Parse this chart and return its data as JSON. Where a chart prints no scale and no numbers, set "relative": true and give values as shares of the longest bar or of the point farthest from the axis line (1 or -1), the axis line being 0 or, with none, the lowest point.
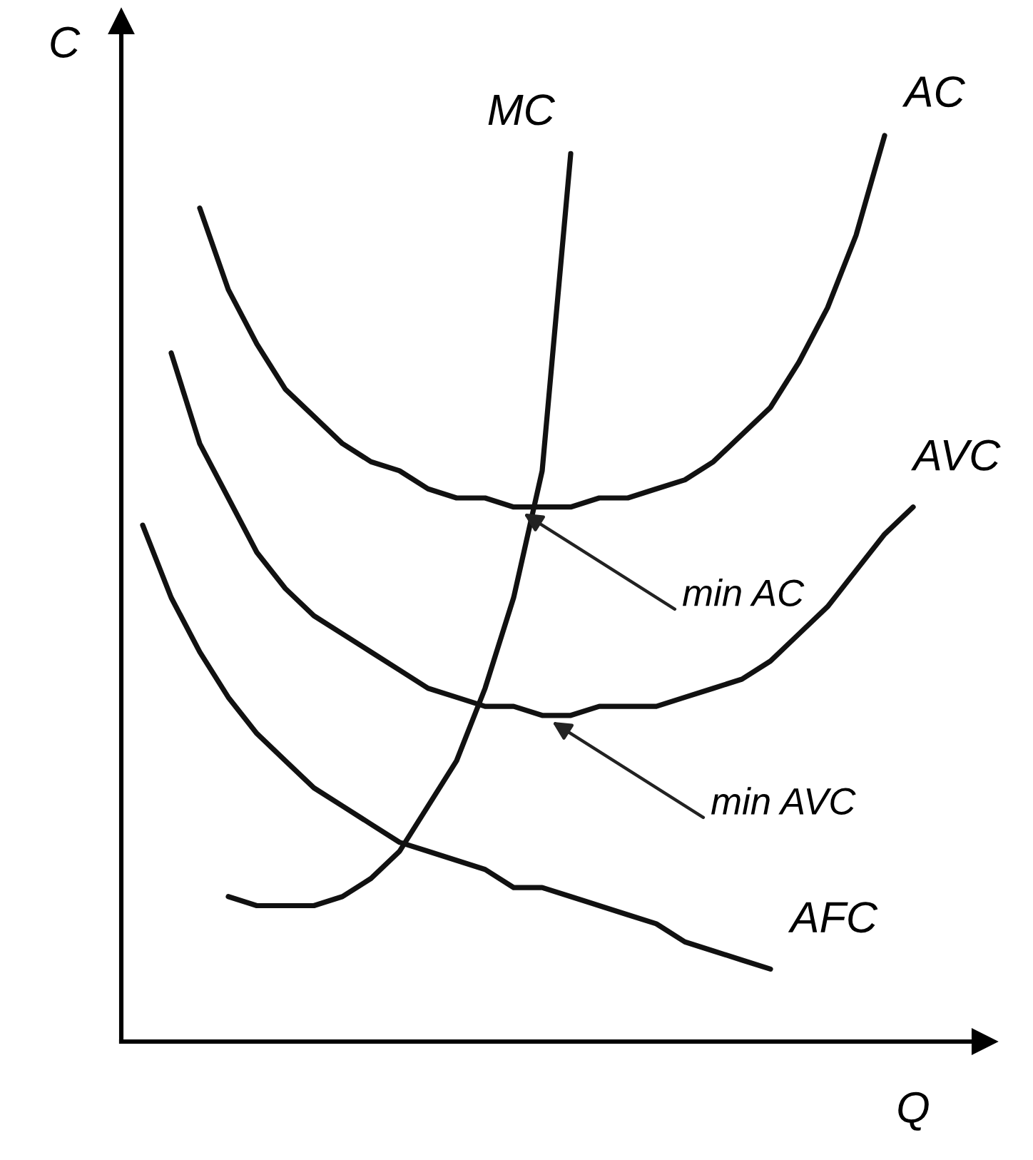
{
  "chart_data": {
    "type": "line",
    "relative": true,
    "xlabel": "Q",
    "ylabel": "C",
    "categories": [
      null,
      null,
      null,
      null,
      null,
      null,
      null,
      null,
      null,
      null,
      null,
      null,
      null,
      null,
      null,
      null,
      null,
      null,
      null,
      null,
      null,
      null,
      null,
      null,
      null,
      null,
      null,
      null
    ],
    "series": [
      {
        "name": "MC",
        "color": "#111111",
        "values": [
          null,
          null,
          null,
          0.16,
          0.15,
          0.15,
          0.15,
          0.16,
          0.18,
          0.21,
          0.26,
          0.31,
          0.39,
          0.49,
          0.63,
          0.98,
          null,
          null,
          null,
          null,
          null,
          null,
          null,
          null,
          null,
          null,
          null,
          null
        ]
      },
      {
        "name": "AC",
        "color": "#111111",
        "values": [
          null,
          null,
          0.92,
          0.83,
          0.77,
          0.72,
          0.69,
          0.66,
          0.64,
          0.63,
          0.61,
          0.6,
          0.6,
          0.59,
          0.59,
          0.59,
          0.6,
          0.6,
          0.61,
          0.62,
          0.64,
          0.67,
          0.7,
          0.75,
          0.81,
          0.89,
          1.0,
          null
        ]
      },
      {
        "name": "AVC",
        "color": "#111111",
        "values": [
          null,
          0.76,
          0.66,
          0.6,
          0.54,
          0.5,
          0.47,
          0.45,
          0.43,
          0.41,
          0.39,
          0.38,
          0.37,
          0.37,
          0.36,
          0.36,
          0.37,
          0.37,
          0.37,
          0.38,
          0.39,
          0.4,
          0.42,
          0.45,
          0.48,
          0.52,
          0.56,
          0.59
        ]
      },
      {
        "name": "AFC",
        "color": "#111111",
        "values": [
          0.57,
          0.49,
          0.43,
          0.38,
          0.34,
          0.31,
          0.28,
          0.26,
          0.24,
          0.22,
          0.21,
          0.2,
          0.19,
          0.17,
          0.17,
          0.16,
          0.15,
          0.14,
          0.13,
          0.11,
          0.1,
          0.09,
          0.08,
          null,
          null,
          null,
          null,
          null
        ]
      }
    ],
    "annotations": [
      "min AC",
      "min AVC"
    ],
    "legend": false,
    "marker": "none",
    "line_style": "solid"
  }
}
